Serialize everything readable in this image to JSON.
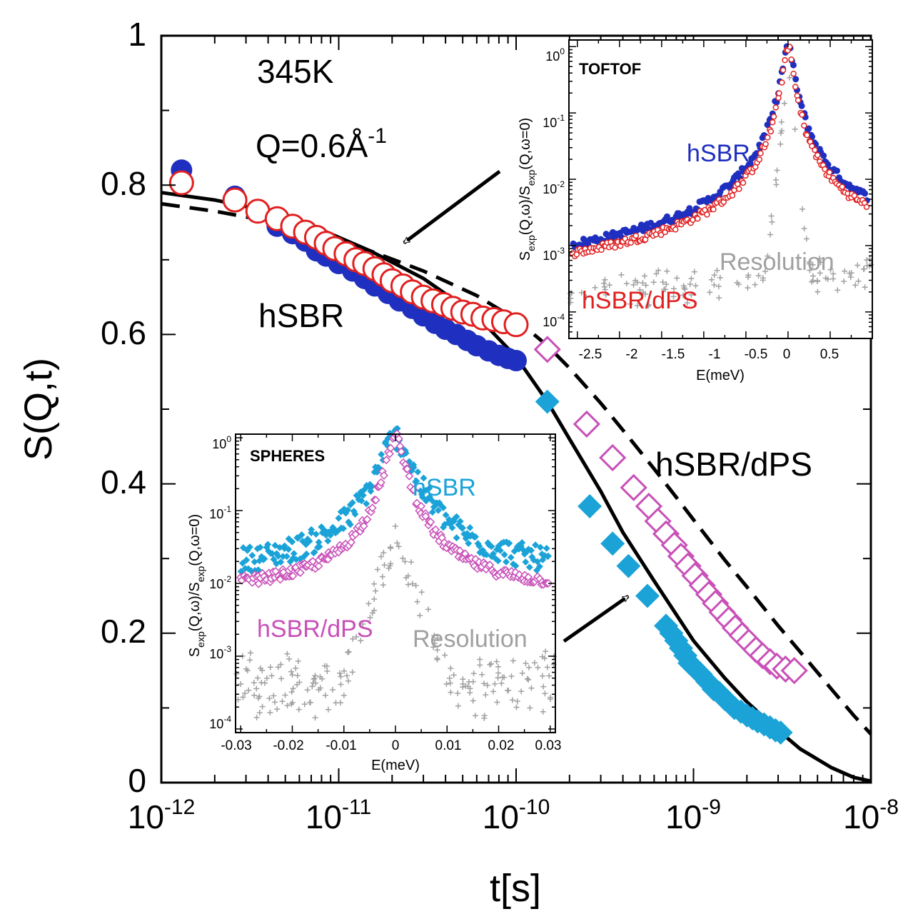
{
  "chart_data": [
    {
      "id": "main",
      "type": "scatter",
      "xscale": "log",
      "xlim": [
        1e-12,
        1e-08
      ],
      "ylim": [
        0,
        1
      ],
      "xlabel": "t[s]",
      "ylabel": "S(Q,t)",
      "x_tick_labels": [
        {
          "base": "10",
          "exp": "-12",
          "value": 1e-12
        },
        {
          "base": "10",
          "exp": "-11",
          "value": 1e-11
        },
        {
          "base": "10",
          "exp": "-10",
          "value": 1e-10
        },
        {
          "base": "10",
          "exp": "-9",
          "value": 1e-09
        },
        {
          "base": "10",
          "exp": "-8",
          "value": 1e-08
        }
      ],
      "y_tick_labels": [
        {
          "text": "0",
          "value": 0
        },
        {
          "text": "0.2",
          "value": 0.2
        },
        {
          "text": "0.4",
          "value": 0.4
        },
        {
          "text": "0.6",
          "value": 0.6
        },
        {
          "text": "0.8",
          "value": 0.8
        },
        {
          "text": "1",
          "value": 1
        }
      ],
      "annotations": {
        "temperature": "345K",
        "q_prefix": "Q=0.6Å",
        "q_exp": "-1",
        "label_hsbr": "hSBR",
        "label_hsbr_dps": "hSBR/dPS"
      },
      "series": [
        {
          "name": "hSBR",
          "role": "tof",
          "marker": "filled-circle",
          "color": "#1f2fbf",
          "x": [
            1.3e-12,
            2.6e-12,
            3.5e-12,
            4.5e-12,
            5.5e-12,
            6.5e-12,
            7.5e-12,
            8.5e-12,
            1e-11,
            1.2e-11,
            1.4e-11,
            1.6e-11,
            1.9e-11,
            2.2e-11,
            2.6e-11,
            3e-11,
            3.5e-11,
            4e-11,
            4.6e-11,
            5.3e-11,
            6e-11,
            7e-11,
            8e-11,
            9e-11,
            1e-10
          ],
          "y": [
            0.82,
            0.785,
            0.765,
            0.745,
            0.735,
            0.725,
            0.712,
            0.705,
            0.695,
            0.685,
            0.675,
            0.665,
            0.655,
            0.645,
            0.635,
            0.625,
            0.615,
            0.607,
            0.6,
            0.592,
            0.585,
            0.578,
            0.572,
            0.568,
            0.565
          ]
        },
        {
          "name": "hSBR/dPS",
          "role": "tof",
          "marker": "open-circle",
          "color": "#e02020",
          "x": [
            1.3e-12,
            2.6e-12,
            3.5e-12,
            4.5e-12,
            5.5e-12,
            6.5e-12,
            7.5e-12,
            8.5e-12,
            9.5e-12,
            1.1e-11,
            1.25e-11,
            1.4e-11,
            1.6e-11,
            1.8e-11,
            2e-11,
            2.3e-11,
            2.6e-11,
            3e-11,
            3.4e-11,
            3.9e-11,
            4.4e-11,
            5e-11,
            5.7e-11,
            6.5e-11,
            7.5e-11,
            8.5e-11,
            1e-10
          ],
          "y": [
            0.803,
            0.78,
            0.765,
            0.755,
            0.745,
            0.737,
            0.73,
            0.722,
            0.715,
            0.708,
            0.7,
            0.695,
            0.688,
            0.68,
            0.672,
            0.665,
            0.657,
            0.65,
            0.645,
            0.64,
            0.635,
            0.63,
            0.627,
            0.622,
            0.62,
            0.617,
            0.613
          ]
        },
        {
          "name": "hSBR",
          "role": "spheres",
          "marker": "filled-diamond",
          "color": "#1ba3d8",
          "x": [
            1.5e-10,
            2.6e-10,
            3.5e-10,
            4.3e-10,
            5.5e-10,
            7e-10,
            7.5e-10,
            8e-10,
            8.5e-10,
            9e-10,
            9.5e-10,
            1e-09,
            1.1e-09,
            1.2e-09,
            1.3e-09,
            1.4e-09,
            1.5e-09,
            1.6e-09,
            1.7e-09,
            1.85e-09,
            2e-09,
            2.15e-09,
            2.3e-09,
            2.5e-09,
            2.7e-09,
            2.9e-09,
            3.1e-09
          ],
          "y": [
            0.51,
            0.37,
            0.32,
            0.29,
            0.25,
            0.21,
            0.2,
            0.19,
            0.18,
            0.17,
            0.16,
            0.155,
            0.145,
            0.135,
            0.125,
            0.12,
            0.112,
            0.106,
            0.1,
            0.095,
            0.09,
            0.086,
            0.082,
            0.078,
            0.074,
            0.07,
            0.067
          ]
        },
        {
          "name": "hSBR/dPS",
          "role": "spheres",
          "marker": "open-square",
          "color": "#c850b8",
          "x": [
            1.5e-10,
            2.5e-10,
            3.5e-10,
            4.6e-10,
            5.6e-10,
            6.3e-10,
            7e-10,
            7.8e-10,
            8.5e-10,
            9.3e-10,
            1.02e-09,
            1.12e-09,
            1.22e-09,
            1.33e-09,
            1.45e-09,
            1.58e-09,
            1.72e-09,
            1.88e-09,
            2.05e-09,
            2.25e-09,
            2.45e-09,
            2.7e-09,
            2.95e-09,
            3.3e-09,
            3.7e-09
          ],
          "y": [
            0.58,
            0.48,
            0.435,
            0.395,
            0.37,
            0.35,
            0.333,
            0.318,
            0.303,
            0.29,
            0.277,
            0.264,
            0.252,
            0.24,
            0.228,
            0.218,
            0.207,
            0.197,
            0.188,
            0.178,
            0.17,
            0.162,
            0.156,
            0.152,
            0.15
          ]
        },
        {
          "name": "",
          "role": "fit-solid",
          "line": "solid",
          "color": "#000000",
          "x": [
            1e-12,
            2e-12,
            4e-12,
            8e-12,
            1.5e-11,
            3e-11,
            6e-11,
            1e-10,
            1.5e-10,
            2e-10,
            3e-10,
            4e-10,
            6e-10,
            8e-10,
            1e-09,
            1.5e-09,
            2e-09,
            3e-09,
            4e-09,
            6e-09,
            8e-09,
            1e-08
          ],
          "y": [
            0.79,
            0.78,
            0.765,
            0.74,
            0.712,
            0.675,
            0.625,
            0.57,
            0.51,
            0.46,
            0.39,
            0.335,
            0.27,
            0.225,
            0.19,
            0.14,
            0.108,
            0.07,
            0.045,
            0.02,
            0.007,
            0.002
          ]
        },
        {
          "name": "",
          "role": "fit-dashed",
          "line": "dashed",
          "color": "#000000",
          "x": [
            1e-12,
            2e-12,
            4e-12,
            8e-12,
            1.5e-11,
            3e-11,
            6e-11,
            1e-10,
            1.5e-10,
            2e-10,
            3e-10,
            4e-10,
            6e-10,
            8e-10,
            1e-09,
            1.5e-09,
            2e-09,
            3e-09,
            4e-09,
            6e-09,
            8e-09,
            1e-08
          ],
          "y": [
            0.775,
            0.765,
            0.752,
            0.733,
            0.712,
            0.685,
            0.652,
            0.62,
            0.585,
            0.555,
            0.508,
            0.472,
            0.42,
            0.382,
            0.352,
            0.298,
            0.262,
            0.21,
            0.175,
            0.125,
            0.09,
            0.065
          ]
        }
      ]
    },
    {
      "id": "inset_toftof",
      "type": "scatter",
      "title": "TOFTOF",
      "yscale": "log",
      "xlim": [
        -2.6,
        1.0
      ],
      "ylim_exp": [
        -4.4,
        0.1
      ],
      "xlabel": "E(meV)",
      "ylabel_parts": [
        "S",
        "exp",
        "(Q,ω)/S",
        "exp",
        "(Q,ω=0)"
      ],
      "x_ticks": [
        {
          "text": "-2.5",
          "value": -2.5
        },
        {
          "text": "-2",
          "value": -2
        },
        {
          "text": "-1.5",
          "value": -1.5
        },
        {
          "text": "-1",
          "value": -1
        },
        {
          "text": "-0.5",
          "value": -0.5
        },
        {
          "text": "0",
          "value": 0
        },
        {
          "text": "0.5",
          "value": 0.5
        }
      ],
      "y_ticks": [
        {
          "base": "10",
          "exp": "0",
          "value": 0
        },
        {
          "base": "10",
          "exp": "-1",
          "value": -1
        },
        {
          "base": "10",
          "exp": "-2",
          "value": -2
        },
        {
          "base": "10",
          "exp": "-3",
          "value": -3
        },
        {
          "base": "10",
          "exp": "-4",
          "value": -4
        }
      ],
      "labels": {
        "hsbr": "hSBR",
        "resolution": "Resolution",
        "hsbr_dps": "hSBR/dPS"
      },
      "series_colors": {
        "hsbr": "#1f2fbf",
        "hsbr_dps": "#e02020",
        "resolution": "#a0a0a0"
      },
      "peak_width_hsbr": 0.06,
      "peak_width_dps": 0.05,
      "background_hsbr": [
        -3.3,
        -2.85
      ],
      "background_dps": [
        -3.4,
        -2.9
      ],
      "resolution_level": [
        -3.9,
        -3.5
      ]
    },
    {
      "id": "inset_spheres",
      "type": "scatter",
      "title": "SPHERES",
      "yscale": "log",
      "xlim": [
        -0.031,
        0.031
      ],
      "ylim_exp": [
        -4.05,
        0.05
      ],
      "xlabel": "E(meV)",
      "ylabel_parts": [
        "S",
        "exp",
        "(Q,ω)/S",
        "exp",
        "(Q,ω=0)"
      ],
      "x_ticks": [
        {
          "text": "-0.03",
          "value": -0.03
        },
        {
          "text": "-0.02",
          "value": -0.02
        },
        {
          "text": "-0.01",
          "value": -0.01
        },
        {
          "text": "0",
          "value": 0
        },
        {
          "text": "0.01",
          "value": 0.01
        },
        {
          "text": "0.02",
          "value": 0.02
        },
        {
          "text": "0.03",
          "value": 0.03
        }
      ],
      "y_ticks": [
        {
          "base": "10",
          "exp": "0",
          "value": 0
        },
        {
          "base": "10",
          "exp": "-1",
          "value": -1
        },
        {
          "base": "10",
          "exp": "-2",
          "value": -2
        },
        {
          "base": "10",
          "exp": "-3",
          "value": -3
        },
        {
          "base": "10",
          "exp": "-4",
          "value": -4
        }
      ],
      "labels": {
        "hsbr": "hSBR",
        "hsbr_dps": "hSBR/dPS",
        "resolution": "Resolution"
      },
      "series_colors": {
        "hsbr": "#1ba3d8",
        "hsbr_dps": "#c850b8",
        "resolution": "#a0a0a0"
      },
      "background_hsbr": -1.85,
      "background_dps": -2.1,
      "resolution_level": [
        -3.7,
        -3.1
      ]
    }
  ]
}
